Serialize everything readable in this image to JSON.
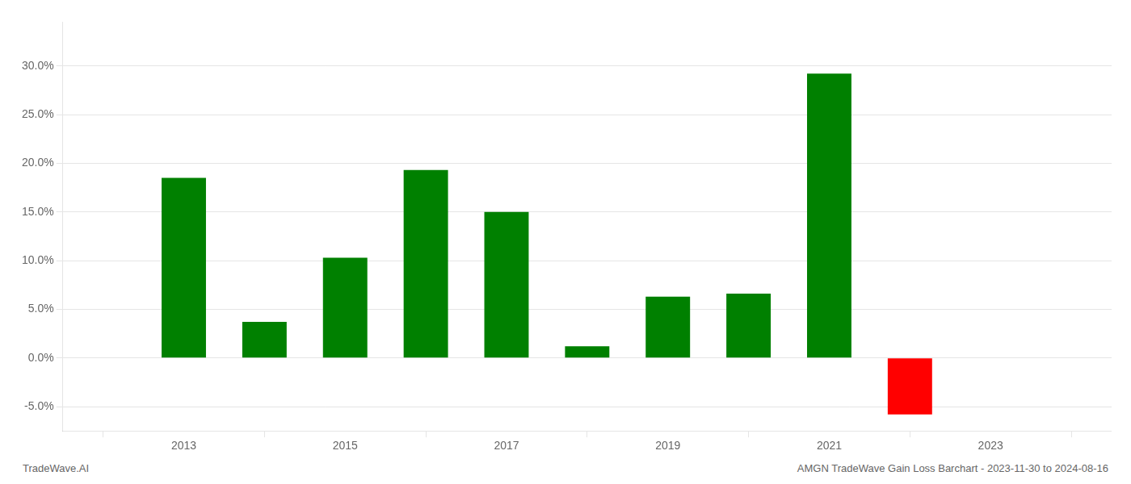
{
  "chart_data": {
    "type": "bar",
    "x": [
      2013,
      2014,
      2015,
      2016,
      2017,
      2018,
      2019,
      2020,
      2021,
      2022
    ],
    "values": [
      0.185,
      0.037,
      0.103,
      0.193,
      0.15,
      0.012,
      0.063,
      0.066,
      0.292,
      -0.058
    ],
    "colors": [
      "#008000",
      "#008000",
      "#008000",
      "#008000",
      "#008000",
      "#008000",
      "#008000",
      "#008000",
      "#008000",
      "#ff0000"
    ],
    "xlim": [
      2011.5,
      2024.5
    ],
    "xticks": [
      2013,
      2015,
      2017,
      2019,
      2021,
      2023
    ],
    "ylim": [
      -0.075,
      0.345
    ],
    "yticks": [
      {
        "value": -0.05,
        "label": "-5.0%"
      },
      {
        "value": 0.0,
        "label": "0.0%"
      },
      {
        "value": 0.05,
        "label": "5.0%"
      },
      {
        "value": 0.1,
        "label": "10.0%"
      },
      {
        "value": 0.15,
        "label": "15.0%"
      },
      {
        "value": 0.2,
        "label": "20.0%"
      },
      {
        "value": 0.25,
        "label": "25.0%"
      },
      {
        "value": 0.3,
        "label": "30.0%"
      }
    ],
    "grid": true,
    "annotations": [
      "TradeWave.AI",
      "AMGN TradeWave Gain Loss Barchart - 2023-11-30 to 2024-08-16"
    ]
  }
}
